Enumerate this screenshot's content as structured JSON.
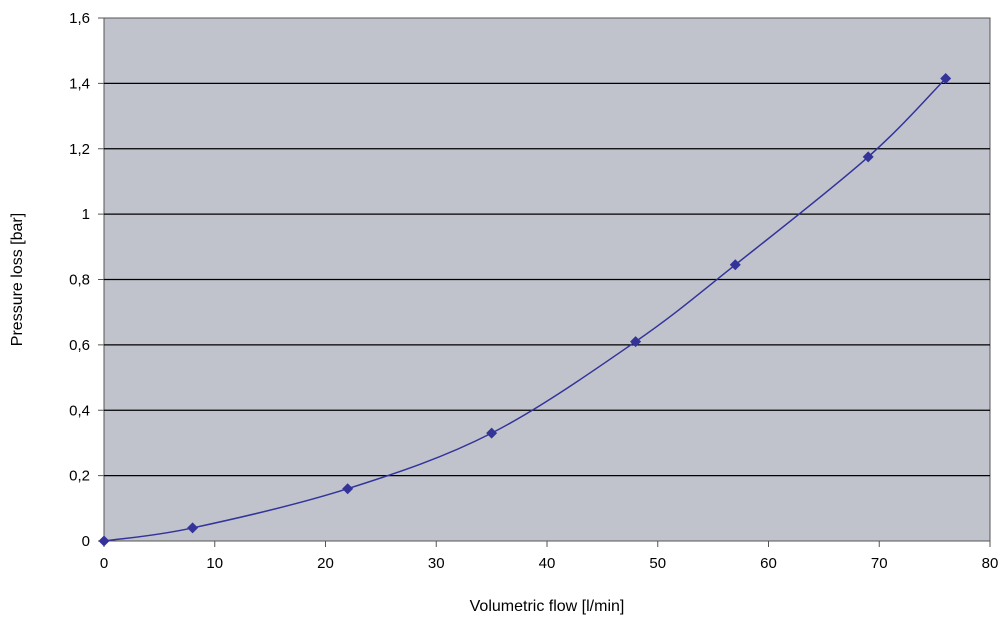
{
  "chart_data": {
    "type": "line",
    "title": "",
    "xlabel": "Volumetric flow [l/min]",
    "ylabel": "Pressure loss [bar]",
    "xlim": [
      0,
      80
    ],
    "ylim": [
      0,
      1.6
    ],
    "x_ticks": [
      "0",
      "10",
      "20",
      "30",
      "40",
      "50",
      "60",
      "70",
      "80"
    ],
    "y_ticks": [
      "0",
      "0,2",
      "0,4",
      "0,6",
      "0,8",
      "1",
      "1,2",
      "1,4",
      "1,6"
    ],
    "grid": "horizontal",
    "legend": "none",
    "series": [
      {
        "x": [
          0,
          8,
          22,
          35,
          48,
          57,
          69,
          76
        ],
        "y": [
          0,
          0.04,
          0.16,
          0.33,
          0.61,
          0.845,
          1.175,
          1.415
        ]
      }
    ],
    "colors": {
      "plot_background": "#c0c3cc",
      "series": "#33339a",
      "grid": "#000000",
      "axis": "#555555"
    }
  }
}
